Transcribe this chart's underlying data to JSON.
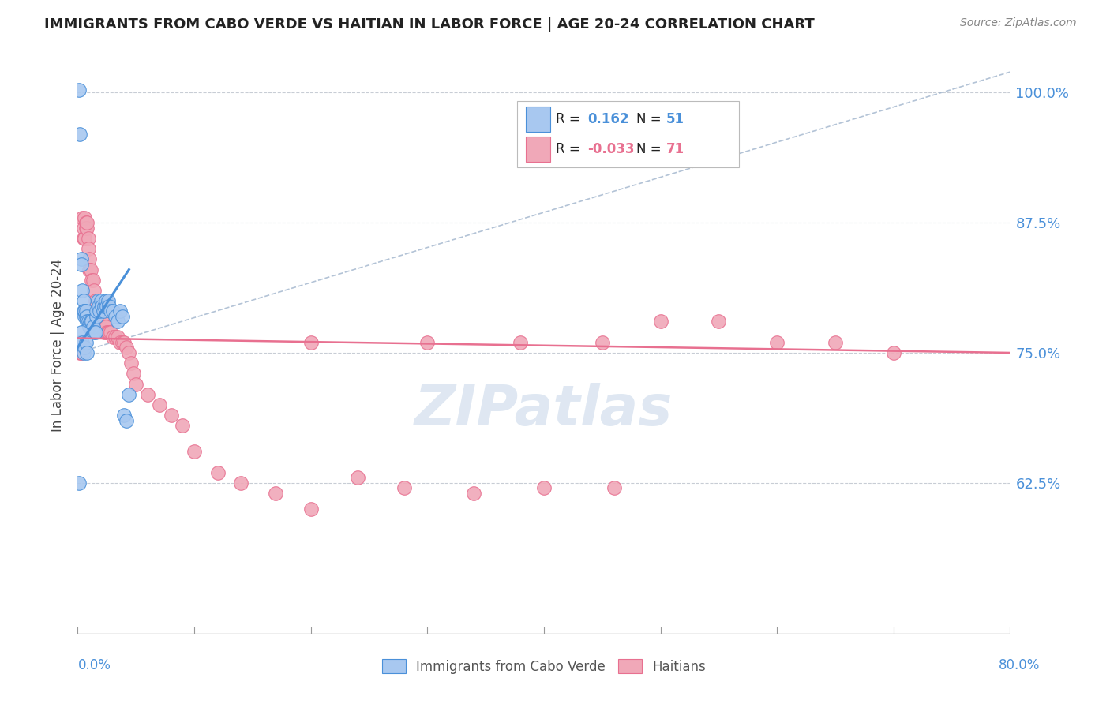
{
  "title": "IMMIGRANTS FROM CABO VERDE VS HAITIAN IN LABOR FORCE | AGE 20-24 CORRELATION CHART",
  "source": "Source: ZipAtlas.com",
  "ylabel": "In Labor Force | Age 20-24",
  "xlim": [
    0.0,
    0.8
  ],
  "ylim": [
    0.48,
    1.035
  ],
  "ytick_positions": [
    0.625,
    0.75,
    0.875,
    1.0
  ],
  "ytick_labels": [
    "62.5%",
    "75.0%",
    "87.5%",
    "100.0%"
  ],
  "color_cabo": "#a8c8f0",
  "color_haitian": "#f0a8b8",
  "color_cabo_line": "#4a90d9",
  "color_haitian_line": "#e87090",
  "color_ref_line": "#a0b4cc",
  "cabo_x": [
    0.001,
    0.002,
    0.003,
    0.003,
    0.004,
    0.005,
    0.005,
    0.006,
    0.006,
    0.007,
    0.007,
    0.008,
    0.008,
    0.009,
    0.01,
    0.01,
    0.011,
    0.012,
    0.013,
    0.014,
    0.015,
    0.016,
    0.016,
    0.017,
    0.018,
    0.019,
    0.02,
    0.021,
    0.022,
    0.023,
    0.024,
    0.025,
    0.026,
    0.027,
    0.028,
    0.03,
    0.032,
    0.034,
    0.036,
    0.038,
    0.04,
    0.042,
    0.044,
    0.002,
    0.003,
    0.004,
    0.005,
    0.006,
    0.007,
    0.008,
    0.001
  ],
  "cabo_y": [
    1.003,
    0.96,
    0.84,
    0.835,
    0.81,
    0.8,
    0.79,
    0.785,
    0.79,
    0.785,
    0.79,
    0.785,
    0.78,
    0.78,
    0.777,
    0.775,
    0.78,
    0.78,
    0.775,
    0.77,
    0.77,
    0.785,
    0.79,
    0.8,
    0.795,
    0.79,
    0.8,
    0.795,
    0.79,
    0.795,
    0.8,
    0.795,
    0.8,
    0.795,
    0.79,
    0.79,
    0.785,
    0.78,
    0.79,
    0.785,
    0.69,
    0.685,
    0.71,
    0.76,
    0.77,
    0.76,
    0.75,
    0.755,
    0.76,
    0.75,
    0.625
  ],
  "haitian_x": [
    0.001,
    0.002,
    0.002,
    0.003,
    0.003,
    0.004,
    0.004,
    0.005,
    0.005,
    0.006,
    0.006,
    0.007,
    0.007,
    0.008,
    0.008,
    0.009,
    0.009,
    0.01,
    0.01,
    0.011,
    0.012,
    0.013,
    0.014,
    0.015,
    0.016,
    0.017,
    0.018,
    0.019,
    0.02,
    0.021,
    0.022,
    0.023,
    0.024,
    0.025,
    0.026,
    0.027,
    0.028,
    0.03,
    0.032,
    0.034,
    0.036,
    0.038,
    0.04,
    0.042,
    0.044,
    0.046,
    0.048,
    0.05,
    0.06,
    0.07,
    0.08,
    0.09,
    0.1,
    0.12,
    0.14,
    0.17,
    0.2,
    0.24,
    0.28,
    0.34,
    0.4,
    0.46,
    0.5,
    0.55,
    0.6,
    0.65,
    0.7,
    0.38,
    0.45,
    0.3,
    0.2
  ],
  "haitian_y": [
    0.755,
    0.755,
    0.75,
    0.75,
    0.755,
    0.755,
    0.88,
    0.87,
    0.86,
    0.86,
    0.88,
    0.875,
    0.87,
    0.87,
    0.875,
    0.86,
    0.85,
    0.84,
    0.83,
    0.83,
    0.82,
    0.82,
    0.81,
    0.8,
    0.79,
    0.785,
    0.785,
    0.785,
    0.785,
    0.785,
    0.78,
    0.77,
    0.775,
    0.77,
    0.77,
    0.77,
    0.77,
    0.765,
    0.765,
    0.765,
    0.76,
    0.76,
    0.76,
    0.755,
    0.75,
    0.74,
    0.73,
    0.72,
    0.71,
    0.7,
    0.69,
    0.68,
    0.655,
    0.635,
    0.625,
    0.615,
    0.6,
    0.63,
    0.62,
    0.615,
    0.62,
    0.62,
    0.78,
    0.78,
    0.76,
    0.76,
    0.75,
    0.76,
    0.76,
    0.76,
    0.76
  ],
  "cabo_trendline_x": [
    0.0,
    0.044
  ],
  "cabo_trendline_y": [
    0.755,
    0.83
  ],
  "haitian_trendline_x": [
    0.0,
    0.8
  ],
  "haitian_trendline_y": [
    0.764,
    0.75
  ],
  "ref_line_x": [
    0.0,
    0.8
  ],
  "ref_line_y": [
    0.75,
    1.02
  ],
  "legend_text": [
    {
      "label": "R = ",
      "value": "0.162",
      "n_label": "N = ",
      "n_value": "51"
    },
    {
      "label": "R = ",
      "value": "-0.033",
      "n_label": "N = ",
      "n_value": "71"
    }
  ]
}
